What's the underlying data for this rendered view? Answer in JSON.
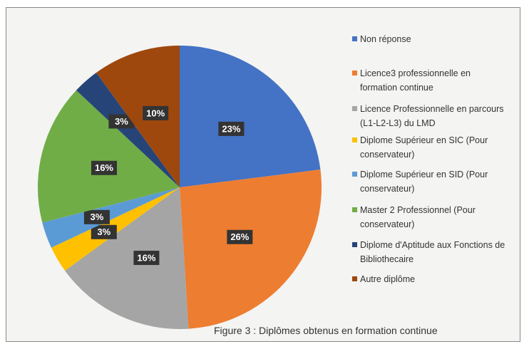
{
  "chart_data": {
    "type": "pie",
    "title": "Figure 3 : Diplômes obtenus en formation continue",
    "categories": [
      "Non réponse",
      "Licence3 professionnelle en formation continue",
      "Licence Professionnelle en parcours (L1-L2-L3) du LMD",
      "Diplome Supérieur en SIC (Pour conservateur)",
      "Diplome Supérieur en SID (Pour conservateur)",
      "Master 2 Professionnel (Pour conservateur)",
      "Diplome d'Aptitude aux Fonctions de Bibliothecaire",
      "Autre diplôme"
    ],
    "values": [
      23,
      26,
      16,
      3,
      3,
      16,
      3,
      10
    ],
    "value_labels": [
      "23%",
      "26%",
      "16%",
      "3%",
      "3%",
      "16%",
      "3%",
      "10%"
    ],
    "colors": [
      "#4472c4",
      "#ed7d31",
      "#a5a5a5",
      "#ffc000",
      "#5b9bd5",
      "#70ad47",
      "#264478",
      "#9e480e"
    ],
    "legend": "right"
  }
}
